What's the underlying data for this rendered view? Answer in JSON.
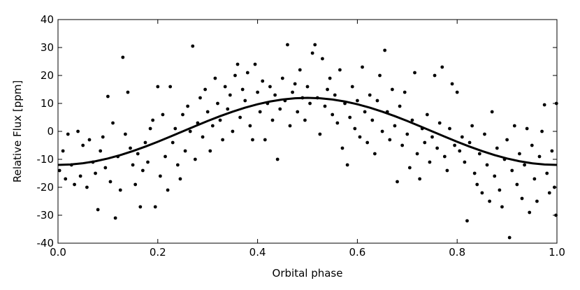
{
  "chart_data": {
    "type": "scatter",
    "xlabel": "Orbital phase",
    "ylabel": "Relative Flux [ppm]",
    "xlim": [
      0,
      1
    ],
    "ylim": [
      -40,
      40
    ],
    "xticks": [
      {
        "value": 0,
        "label": "0.0"
      },
      0.2,
      0.4,
      0.6,
      0.8,
      {
        "value": 1,
        "label": "1.0"
      }
    ],
    "yticks": [
      -40,
      -30,
      -20,
      -10,
      0,
      10,
      20,
      30,
      40
    ],
    "grid": false,
    "series": [
      {
        "type": "scatter",
        "color": "#000000",
        "x": [
          0.003,
          0.01,
          0.015,
          0.02,
          0.027,
          0.033,
          0.04,
          0.045,
          0.05,
          0.058,
          0.063,
          0.07,
          0.075,
          0.08,
          0.085,
          0.09,
          0.095,
          0.1,
          0.105,
          0.11,
          0.115,
          0.12,
          0.125,
          0.13,
          0.135,
          0.14,
          0.145,
          0.15,
          0.155,
          0.16,
          0.165,
          0.17,
          0.175,
          0.18,
          0.185,
          0.19,
          0.195,
          0.2,
          0.205,
          0.21,
          0.215,
          0.22,
          0.225,
          0.23,
          0.235,
          0.24,
          0.245,
          0.25,
          0.255,
          0.26,
          0.265,
          0.27,
          0.275,
          0.28,
          0.285,
          0.29,
          0.295,
          0.3,
          0.305,
          0.31,
          0.315,
          0.32,
          0.325,
          0.33,
          0.335,
          0.34,
          0.345,
          0.35,
          0.355,
          0.36,
          0.365,
          0.37,
          0.375,
          0.38,
          0.385,
          0.39,
          0.395,
          0.4,
          0.405,
          0.41,
          0.415,
          0.42,
          0.425,
          0.43,
          0.435,
          0.44,
          0.445,
          0.45,
          0.455,
          0.46,
          0.465,
          0.47,
          0.475,
          0.48,
          0.485,
          0.49,
          0.495,
          0.5,
          0.505,
          0.51,
          0.515,
          0.52,
          0.525,
          0.53,
          0.535,
          0.54,
          0.545,
          0.55,
          0.555,
          0.56,
          0.565,
          0.57,
          0.575,
          0.58,
          0.585,
          0.59,
          0.595,
          0.6,
          0.605,
          0.61,
          0.615,
          0.62,
          0.625,
          0.63,
          0.635,
          0.64,
          0.645,
          0.65,
          0.655,
          0.66,
          0.665,
          0.67,
          0.675,
          0.68,
          0.685,
          0.69,
          0.695,
          0.7,
          0.705,
          0.71,
          0.715,
          0.72,
          0.725,
          0.73,
          0.735,
          0.74,
          0.745,
          0.75,
          0.755,
          0.76,
          0.765,
          0.77,
          0.775,
          0.78,
          0.785,
          0.79,
          0.795,
          0.8,
          0.805,
          0.81,
          0.815,
          0.82,
          0.825,
          0.83,
          0.835,
          0.84,
          0.845,
          0.85,
          0.855,
          0.86,
          0.865,
          0.87,
          0.875,
          0.88,
          0.885,
          0.89,
          0.895,
          0.9,
          0.905,
          0.91,
          0.915,
          0.92,
          0.925,
          0.93,
          0.935,
          0.94,
          0.945,
          0.95,
          0.955,
          0.96,
          0.965,
          0.97,
          0.975,
          0.98,
          0.985,
          0.99,
          0.995,
          0.998,
          0.999
        ],
        "values": [
          -14,
          -7,
          -17,
          -1,
          -12,
          -19,
          0,
          -16,
          -5,
          -20,
          -3,
          -11,
          -15,
          -28,
          -7,
          -2,
          -13,
          12.5,
          -18,
          3,
          -31,
          -9,
          -21,
          26.5,
          -1,
          14,
          -6,
          -12,
          -19,
          -8,
          -27,
          -14,
          -4,
          -11,
          1,
          4,
          -27,
          16,
          -16,
          6,
          -9,
          -21,
          16,
          -4,
          1,
          -12,
          -17,
          6,
          -7,
          9,
          0,
          30.5,
          -10,
          3,
          12,
          -2,
          15,
          7,
          -7,
          2,
          19,
          10,
          4,
          -3,
          16,
          8,
          13,
          0,
          20,
          24,
          5,
          15,
          11,
          21,
          2,
          -3,
          24,
          14,
          7,
          18,
          -3,
          10,
          16,
          4,
          13,
          -10,
          8,
          19,
          11,
          31,
          2,
          14,
          17,
          7,
          22,
          12,
          4,
          16,
          10,
          28,
          31,
          12,
          -1,
          26,
          9,
          15,
          19,
          6,
          13,
          3,
          22,
          -6,
          10,
          -12,
          5,
          16,
          1,
          11,
          -2,
          23,
          7,
          -4,
          13,
          4,
          -8,
          11,
          20,
          0,
          29,
          7,
          -3,
          15,
          2,
          -18,
          9,
          -5,
          14,
          -1,
          -13,
          4,
          21,
          -8,
          -17,
          1,
          -4,
          6,
          -11,
          -2,
          20,
          -6,
          3,
          23,
          -9,
          -14,
          1,
          17,
          -5,
          14,
          -7,
          -2,
          -11,
          -32,
          -4,
          2,
          -15,
          -19,
          -8,
          -22,
          -1,
          -12,
          -25,
          7,
          -16,
          -6,
          -21,
          -27,
          -10,
          -3,
          -38,
          -14,
          2,
          -19,
          -8,
          -24,
          -12,
          1,
          -29,
          -5,
          -17,
          -25,
          -9,
          0,
          9.5,
          -15,
          -22,
          -7,
          -20,
          -30,
          10
        ]
      },
      {
        "type": "line",
        "color": "#000000",
        "x": [
          0,
          0.025,
          0.05,
          0.075,
          0.1,
          0.125,
          0.15,
          0.175,
          0.2,
          0.225,
          0.25,
          0.275,
          0.3,
          0.325,
          0.35,
          0.375,
          0.4,
          0.425,
          0.45,
          0.475,
          0.5,
          0.525,
          0.55,
          0.575,
          0.6,
          0.625,
          0.65,
          0.675,
          0.7,
          0.725,
          0.75,
          0.775,
          0.8,
          0.825,
          0.85,
          0.875,
          0.9,
          0.925,
          0.95,
          0.975,
          1
        ],
        "values": [
          -12,
          -11.85,
          -11.41,
          -10.69,
          -9.71,
          -8.49,
          -7.05,
          -5.45,
          -3.71,
          -1.88,
          0,
          1.88,
          3.71,
          5.45,
          7.05,
          8.49,
          9.71,
          10.69,
          11.41,
          11.85,
          12,
          11.85,
          11.41,
          10.69,
          9.71,
          8.49,
          7.05,
          5.45,
          3.71,
          1.88,
          0,
          -1.88,
          -3.71,
          -5.45,
          -7.05,
          -8.49,
          -9.71,
          -10.69,
          -11.41,
          -11.85,
          -12
        ]
      }
    ]
  }
}
